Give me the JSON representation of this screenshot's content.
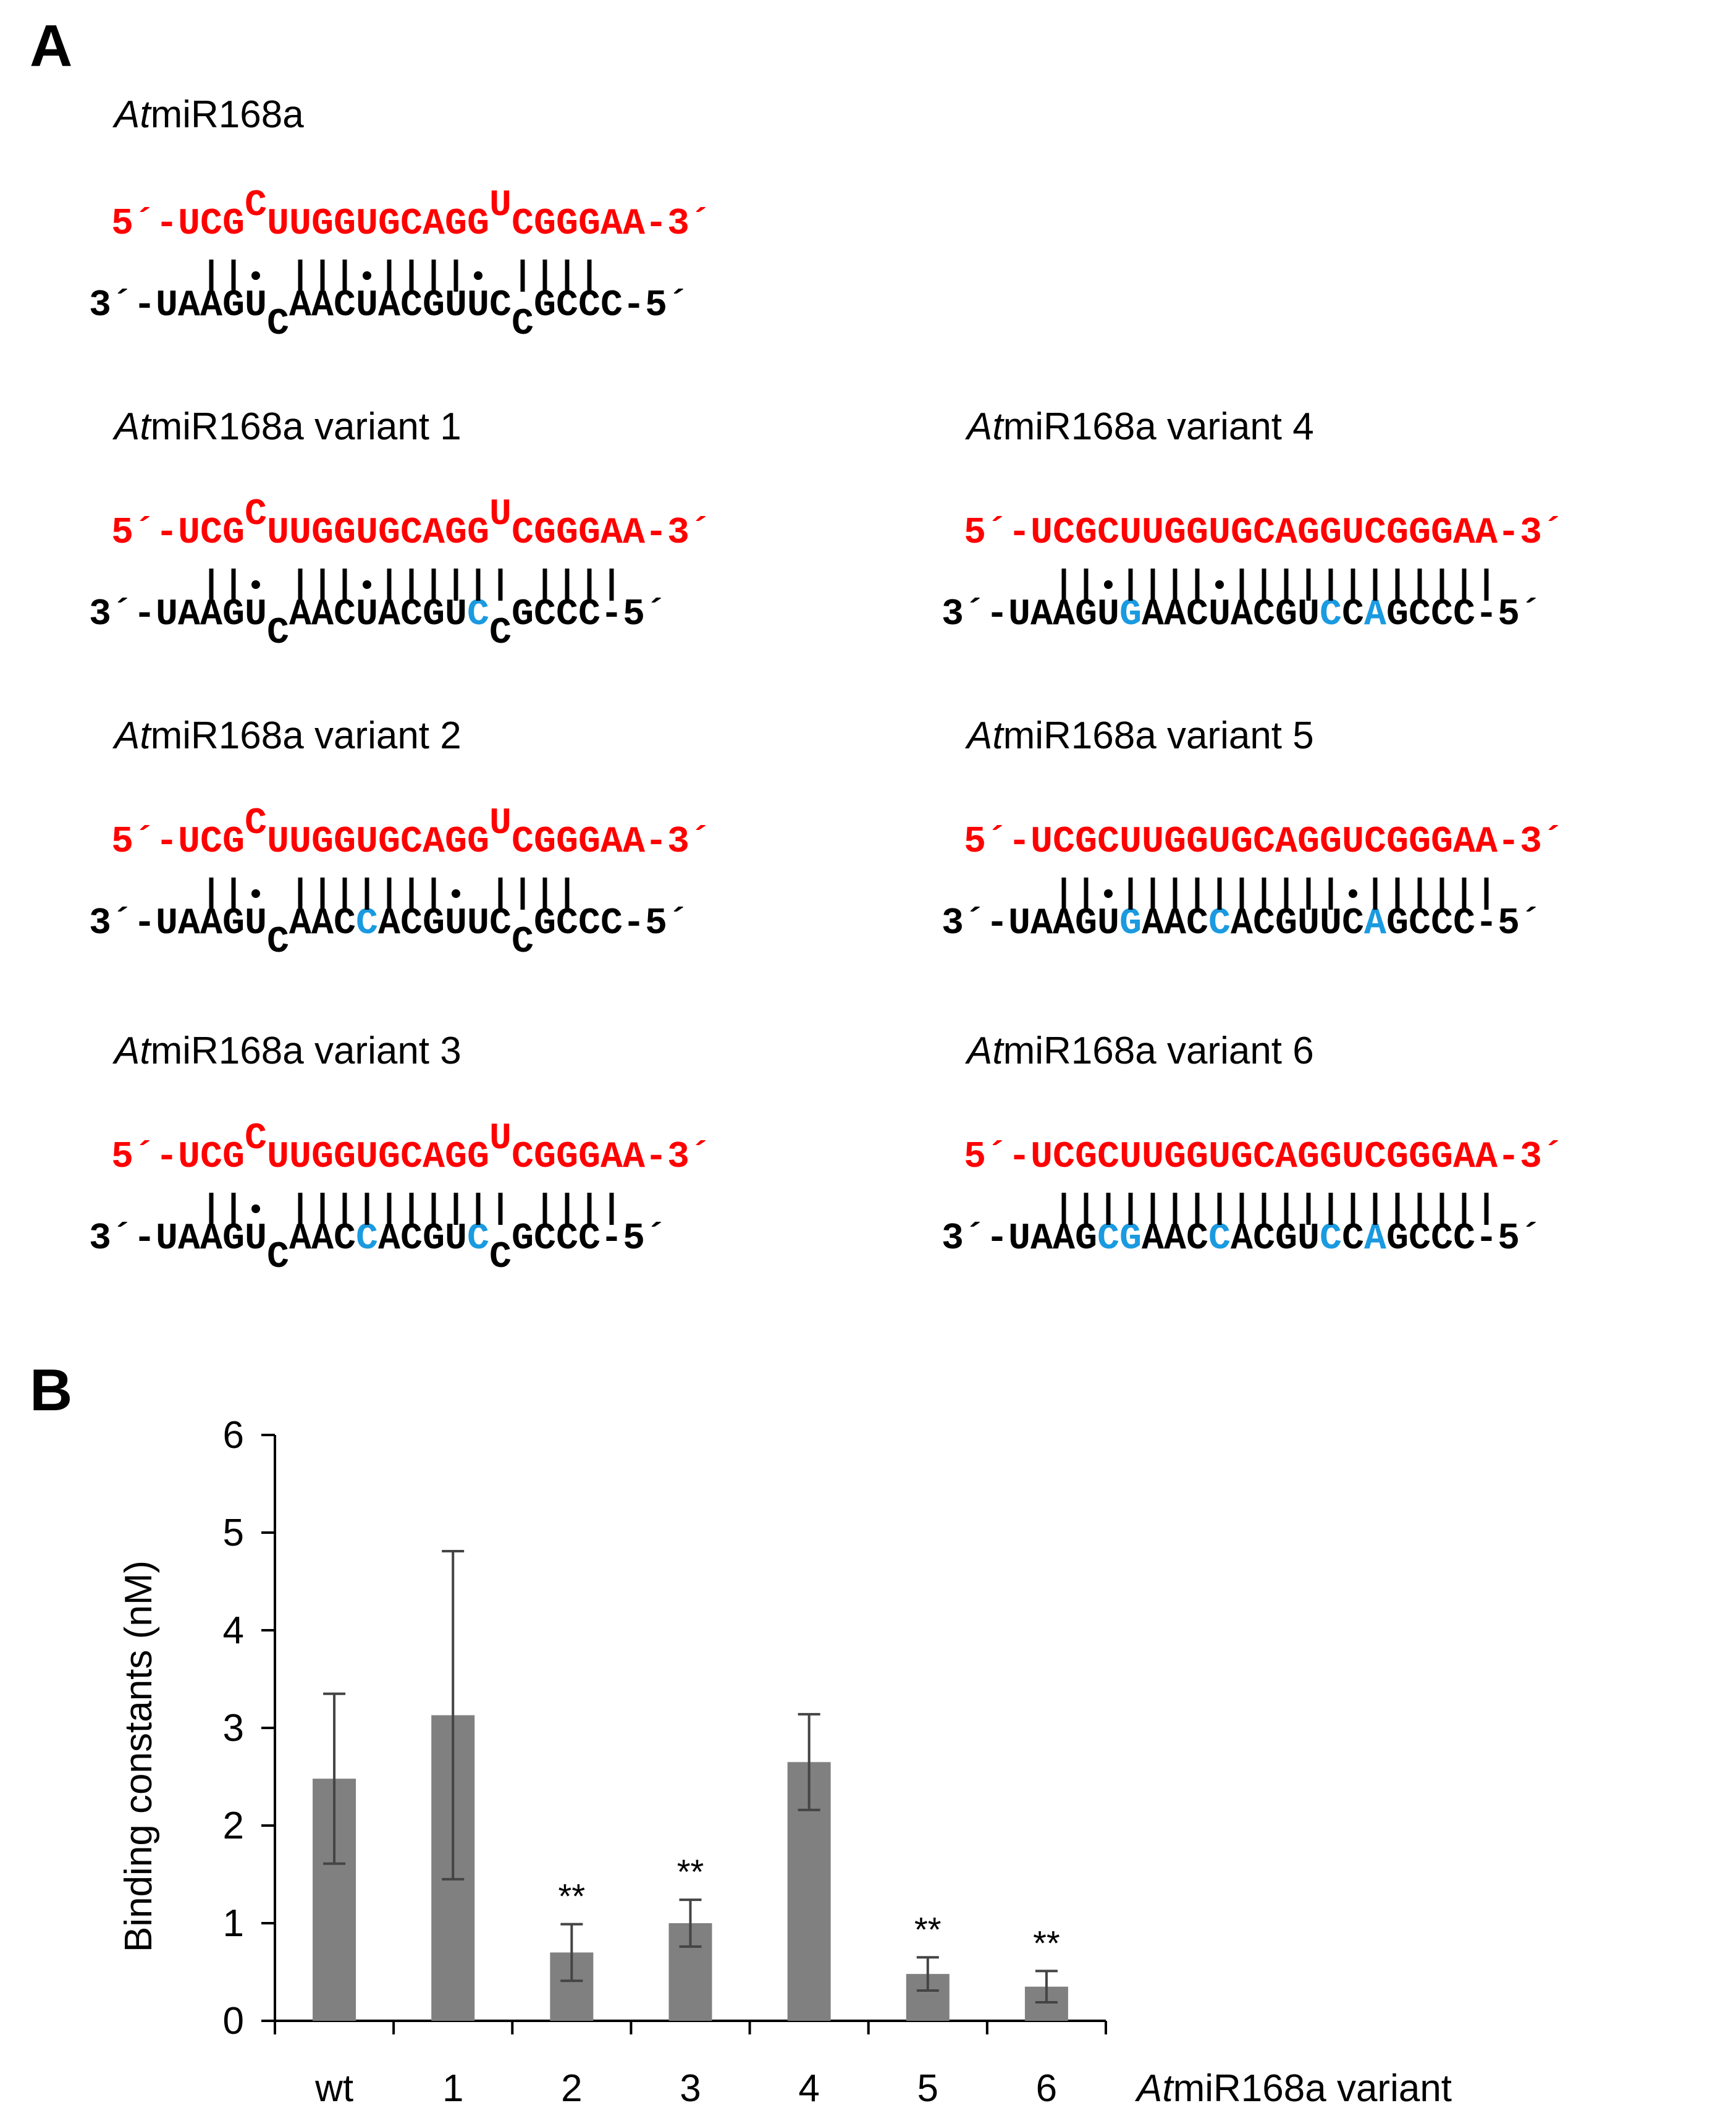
{
  "panel_a": {
    "letter": "A",
    "colors": {
      "mirna": "#ff0000",
      "target": "#000000",
      "mutation": "#1a9ae0"
    },
    "blocks": [
      {
        "title_italic": "At",
        "title_rest": "miR168a",
        "top_prefix": "5´-",
        "top_suffix": "-3´",
        "top_pieces": [
          [
            "UCG",
            0
          ],
          [
            "C",
            1
          ],
          [
            "UUGGUGCAGG",
            0
          ],
          [
            "U",
            1
          ],
          [
            "CGGGAA",
            0
          ]
        ],
        "pairs": "||• |||•||||• ||||",
        "bottom_prefix": "3´-",
        "bottom_suffix": "-5´",
        "bottom_pieces": [
          [
            "UAAGU",
            0
          ],
          [
            "C",
            -1
          ],
          [
            "AACUACGUUC",
            0
          ],
          [
            "C",
            -1
          ],
          [
            "GCCC",
            0
          ]
        ],
        "mutations": []
      },
      {
        "title_italic": "At",
        "title_rest": "miR168a variant 1",
        "top_prefix": "5´-",
        "top_suffix": "-3´",
        "top_pieces": [
          [
            "UCG",
            0
          ],
          [
            "C",
            1
          ],
          [
            "UUGGUGCAGG",
            0
          ],
          [
            "U",
            1
          ],
          [
            "CGGGAA",
            0
          ]
        ],
        "pairs": "||• |||•|||||| ||||",
        "bottom_prefix": "3´-",
        "bottom_suffix": "-5´",
        "bottom_pieces": [
          [
            "UAAGU",
            0
          ],
          [
            "C",
            -1
          ],
          [
            "AACUACGU",
            0
          ],
          [
            "C",
            0,
            "m"
          ],
          [
            "C",
            -1
          ],
          [
            "GCCC",
            0
          ]
        ],
        "mutations": [
          "C"
        ]
      },
      {
        "title_italic": "At",
        "title_rest": "miR168a variant 2",
        "top_prefix": "5´-",
        "top_suffix": "-3´",
        "top_pieces": [
          [
            "UCG",
            0
          ],
          [
            "C",
            1
          ],
          [
            "UUGGUGCAGG",
            0
          ],
          [
            "U",
            1
          ],
          [
            "CGGGAA",
            0
          ]
        ],
        "pairs": "||• |||||||• ||||",
        "bottom_prefix": "3´-",
        "bottom_suffix": "-5´",
        "bottom_pieces": [
          [
            "UAAGU",
            0
          ],
          [
            "C",
            -1
          ],
          [
            "AAC",
            0
          ],
          [
            "C",
            0,
            "m"
          ],
          [
            "ACGUUC",
            0
          ],
          [
            "C",
            -1
          ],
          [
            "GCCC",
            0
          ]
        ],
        "mutations": [
          "C"
        ]
      },
      {
        "title_italic": "At",
        "title_rest": "miR168a variant 3",
        "top_prefix": "5´-",
        "top_suffix": "-3´",
        "top_pieces": [
          [
            "UCG",
            0
          ],
          [
            "C",
            1
          ],
          [
            "UUGGUGCAGG",
            0
          ],
          [
            "U",
            1
          ],
          [
            "CGGGAA",
            0
          ]
        ],
        "pairs": "||• |||||||||| ||||",
        "bottom_prefix": "3´-",
        "bottom_suffix": "-5´",
        "bottom_pieces": [
          [
            "UAAGU",
            0
          ],
          [
            "C",
            -1
          ],
          [
            "AAC",
            0
          ],
          [
            "C",
            0,
            "m"
          ],
          [
            "ACGU",
            0
          ],
          [
            "C",
            0,
            "m"
          ],
          [
            "C",
            -1
          ],
          [
            "GCCC",
            0
          ]
        ],
        "mutations": [
          "C",
          "C"
        ]
      },
      {
        "title_italic": "At",
        "title_rest": "miR168a variant 4",
        "top_prefix": "5´-",
        "top_suffix": "-3´",
        "top_pieces": [
          [
            "UCGCUUGGUGCAGGUCGGGAA",
            0
          ]
        ],
        "pairs": "||•||||•||||||||||||",
        "bottom_prefix": "3´-",
        "bottom_suffix": "-5´",
        "bottom_pieces": [
          [
            "UAAGU",
            0
          ],
          [
            "G",
            0,
            "m"
          ],
          [
            "AACUACGU",
            0
          ],
          [
            "C",
            0,
            "m"
          ],
          [
            "C",
            0
          ],
          [
            "A",
            0,
            "m"
          ],
          [
            "GCCC",
            0
          ]
        ],
        "mutations": [
          "G",
          "C",
          "A"
        ]
      },
      {
        "title_italic": "At",
        "title_rest": "miR168a variant 5",
        "top_prefix": "5´-",
        "top_suffix": "-3´",
        "top_pieces": [
          [
            "UCGCUUGGUGCAGGUCGGGAA",
            0
          ]
        ],
        "pairs": "||•||||||||||•||||||",
        "bottom_prefix": "3´-",
        "bottom_suffix": "-5´",
        "bottom_pieces": [
          [
            "UAAGU",
            0
          ],
          [
            "G",
            0,
            "m"
          ],
          [
            "AAC",
            0
          ],
          [
            "C",
            0,
            "m"
          ],
          [
            "ACGUUC",
            0
          ],
          [
            "A",
            0,
            "m"
          ],
          [
            "GCCC",
            0
          ]
        ],
        "mutations": [
          "G",
          "C",
          "A"
        ]
      },
      {
        "title_italic": "At",
        "title_rest": "miR168a variant 6",
        "top_prefix": "5´-",
        "top_suffix": "-3´",
        "top_pieces": [
          [
            "UCGCUUGGUGCAGGUCGGGAA",
            0
          ]
        ],
        "pairs": "||||||||||||||||||||",
        "bottom_prefix": "3´-",
        "bottom_suffix": "-5´",
        "bottom_pieces": [
          [
            "UAAG",
            0
          ],
          [
            "CG",
            0,
            "m"
          ],
          [
            "AAC",
            0
          ],
          [
            "C",
            0,
            "m"
          ],
          [
            "ACGU",
            0
          ],
          [
            "C",
            0,
            "m"
          ],
          [
            "C",
            0
          ],
          [
            "A",
            0,
            "m"
          ],
          [
            "GCCC",
            0
          ]
        ],
        "mutations": [
          "C",
          "G",
          "C",
          "C",
          "A"
        ]
      }
    ]
  },
  "panel_b": {
    "letter": "B"
  },
  "chart_data": {
    "type": "bar",
    "categories": [
      "wt",
      "1",
      "2",
      "3",
      "4",
      "5",
      "6"
    ],
    "values": [
      2.48,
      3.13,
      0.7,
      1.0,
      2.65,
      0.48,
      0.35
    ],
    "errors": [
      0.87,
      1.68,
      0.29,
      0.24,
      0.49,
      0.17,
      0.16
    ],
    "significance": [
      "",
      "",
      "**",
      "**",
      "",
      "**",
      "**"
    ],
    "ylabel": "Binding constants (nM)",
    "xlabel_italic": "At",
    "xlabel_rest": "miR168a variant",
    "ylim": [
      0,
      6
    ],
    "yticks": [
      0,
      1,
      2,
      3,
      4,
      5,
      6
    ],
    "bar_color": "#808080",
    "grid": false
  }
}
